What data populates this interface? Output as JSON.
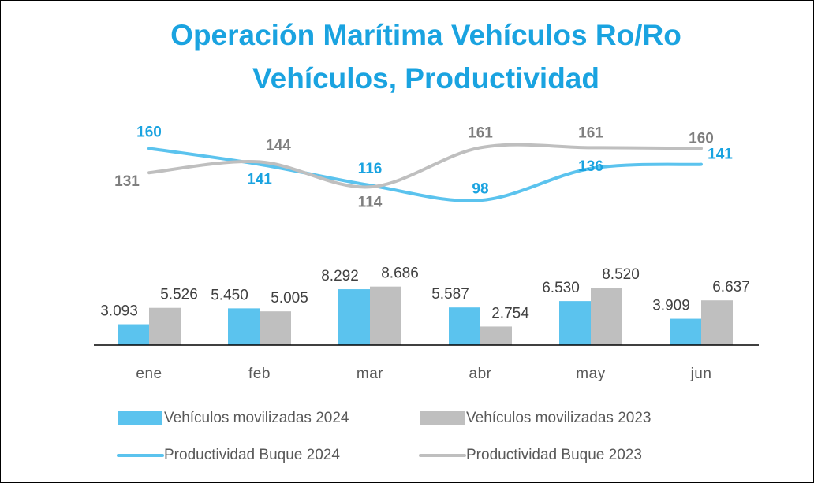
{
  "chart_data": {
    "type": "combo",
    "title": "Operación Marítima Vehículos Ro/Ro",
    "subtitle": "Vehículos, Productividad",
    "categories": [
      "ene",
      "feb",
      "mar",
      "abr",
      "may",
      "jun"
    ],
    "ylim": [
      0,
      36000
    ],
    "y2lim": [
      -75,
      215
    ],
    "legend": "bottom",
    "series": [
      {
        "name": "Vehículos movilizadas 2024",
        "type": "bar",
        "color": "#5bc3ee",
        "values": [
          3093,
          5450,
          8292,
          5587,
          6530,
          3909
        ],
        "value_labels": [
          "3.093",
          "5.450",
          "8.292",
          "5.587",
          "6.530",
          "3.909"
        ]
      },
      {
        "name": "Vehículos movilizadas 2023",
        "type": "bar",
        "color": "#bfbfbf",
        "values": [
          5526,
          5005,
          8686,
          2754,
          8520,
          6637
        ],
        "value_labels": [
          "5.526",
          "5.005",
          "8.686",
          "2.754",
          "8.520",
          "6.637"
        ]
      },
      {
        "name": "Productividad Buque 2024",
        "type": "line",
        "axis": "y2",
        "color": "#5bc3ee",
        "label_color": "#1aa3e0",
        "values": [
          160,
          141,
          116,
          98,
          136,
          141
        ]
      },
      {
        "name": "Productividad Buque 2023",
        "type": "line",
        "axis": "y2",
        "color": "#bfbfbf",
        "label_color": "#7f7f7f",
        "values": [
          131,
          144,
          114,
          161,
          161,
          160
        ]
      }
    ]
  }
}
